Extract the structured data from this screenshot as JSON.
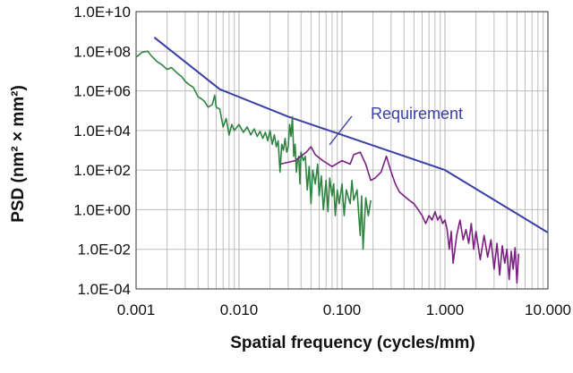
{
  "chart_data": {
    "type": "line",
    "xlabel": "Spatial frequency (cycles/mm)",
    "ylabel": "PSD (nm² × mm²)",
    "x_scale": "log",
    "y_scale": "log",
    "xlim": [
      0.001,
      10
    ],
    "ylim": [
      0.0001,
      10000000000
    ],
    "grid": true,
    "x_ticks": [
      {
        "value": 0.001,
        "label": "0.001"
      },
      {
        "value": 0.01,
        "label": "0.010"
      },
      {
        "value": 0.1,
        "label": "0.100"
      },
      {
        "value": 1,
        "label": "1.000"
      },
      {
        "value": 10,
        "label": "10.000"
      }
    ],
    "y_ticks": [
      {
        "value": 10000000000,
        "label": "1.0E+10"
      },
      {
        "value": 100000000,
        "label": "1.0E+08"
      },
      {
        "value": 1000000,
        "label": "1.0E+06"
      },
      {
        "value": 10000,
        "label": "1.0E+04"
      },
      {
        "value": 100,
        "label": "1.0E+02"
      },
      {
        "value": 1,
        "label": "1.0E+00"
      },
      {
        "value": 0.01,
        "label": "1.0E-02"
      },
      {
        "value": 0.0001,
        "label": "1.0E-04"
      }
    ],
    "annotations": [
      {
        "text": "Requirement",
        "x": 0.3,
        "y": 10000,
        "color": "#3a3fa6"
      }
    ],
    "series": [
      {
        "color": "#3a3fa6",
        "points": [
          [
            0.0015,
            500000000.0
          ],
          [
            0.0065,
            1200000.0
          ],
          [
            0.03,
            50000.0
          ],
          [
            0.1,
            6000.0
          ],
          [
            1,
            100.0
          ],
          [
            10,
            0.07
          ]
        ]
      },
      {
        "color": "#2e8540",
        "points": [
          [
            0.001,
            50000000.0
          ],
          [
            0.00115,
            90000000.0
          ],
          [
            0.0013,
            100000000.0
          ],
          [
            0.0014,
            60000000.0
          ],
          [
            0.0016,
            30000000.0
          ],
          [
            0.0018,
            20000000.0
          ],
          [
            0.002,
            12000000.0
          ],
          [
            0.0022,
            15000000.0
          ],
          [
            0.0025,
            8000000.0
          ],
          [
            0.0028,
            5000000.0
          ],
          [
            0.003,
            3000000.0
          ],
          [
            0.0033,
            2000000.0
          ],
          [
            0.0036,
            1500000.0
          ],
          [
            0.004,
            500000.0
          ],
          [
            0.0043,
            400000.0
          ],
          [
            0.0046,
            300000.0
          ],
          [
            0.005,
            150000.0
          ],
          [
            0.0055,
            200000.0
          ],
          [
            0.0058,
            600000.0
          ],
          [
            0.006,
            150000.0
          ],
          [
            0.0065,
            120000.0
          ],
          [
            0.007,
            15000.0
          ],
          [
            0.0075,
            40000.0
          ],
          [
            0.008,
            6000.0
          ],
          [
            0.0085,
            20000.0
          ],
          [
            0.009,
            10000.0
          ],
          [
            0.01,
            20000.0
          ],
          [
            0.011,
            8000.0
          ],
          [
            0.012,
            15000.0
          ],
          [
            0.013,
            6000.0
          ],
          [
            0.014,
            12000.0
          ],
          [
            0.015,
            5000.0
          ],
          [
            0.016,
            9000.0
          ],
          [
            0.017,
            4000.0
          ],
          [
            0.018,
            8000.0
          ],
          [
            0.019,
            3000.0
          ],
          [
            0.02,
            10000.0
          ],
          [
            0.021,
            2000.0
          ],
          [
            0.022,
            6000.0
          ],
          [
            0.023,
            1500.0
          ],
          [
            0.024,
            3000.0
          ],
          [
            0.025,
            80
          ],
          [
            0.026,
            2000.0
          ],
          [
            0.027,
            1000.0
          ],
          [
            0.028,
            4000.0
          ],
          [
            0.029,
            800
          ],
          [
            0.03,
            1500.0
          ],
          [
            0.031,
            20000.0
          ],
          [
            0.032,
            5000.0
          ],
          [
            0.033,
            50000.0
          ],
          [
            0.034,
            500.0
          ],
          [
            0.035,
            2000.0
          ],
          [
            0.036,
            80
          ],
          [
            0.037,
            300.0
          ],
          [
            0.038,
            500.0
          ],
          [
            0.039,
            20
          ],
          [
            0.04,
            800.0
          ],
          [
            0.042,
            300.0
          ],
          [
            0.044,
            500.0
          ],
          [
            0.046,
            10
          ],
          [
            0.048,
            150
          ],
          [
            0.05,
            2
          ],
          [
            0.052,
            100
          ],
          [
            0.055,
            20
          ],
          [
            0.058,
            200.0
          ],
          [
            0.06,
            5
          ],
          [
            0.063,
            50
          ],
          [
            0.066,
            1
          ],
          [
            0.07,
            30
          ],
          [
            0.073,
            0.8
          ],
          [
            0.076,
            40
          ],
          [
            0.08,
            5
          ],
          [
            0.083,
            20
          ],
          [
            0.086,
            0.5
          ],
          [
            0.09,
            10
          ],
          [
            0.094,
            2
          ],
          [
            0.1,
            20
          ],
          [
            0.105,
            0.5
          ],
          [
            0.11,
            10
          ],
          [
            0.12,
            2
          ],
          [
            0.125,
            30
          ],
          [
            0.13,
            3
          ],
          [
            0.14,
            10
          ],
          [
            0.15,
            0.05
          ],
          [
            0.155,
            5
          ],
          [
            0.16,
            0.01
          ],
          [
            0.17,
            4
          ],
          [
            0.18,
            0.5
          ],
          [
            0.19,
            3
          ]
        ]
      },
      {
        "color": "#7a1f82",
        "points": [
          [
            0.025,
            200
          ],
          [
            0.035,
            300
          ],
          [
            0.045,
            800
          ],
          [
            0.05,
            1500
          ],
          [
            0.055,
            600
          ],
          [
            0.065,
            300
          ],
          [
            0.08,
            150
          ],
          [
            0.1,
            300
          ],
          [
            0.12,
            200
          ],
          [
            0.13,
            600
          ],
          [
            0.15,
            800
          ],
          [
            0.17,
            200
          ],
          [
            0.19,
            30
          ],
          [
            0.21,
            40
          ],
          [
            0.24,
            80
          ],
          [
            0.27,
            500
          ],
          [
            0.3,
            80
          ],
          [
            0.33,
            20
          ],
          [
            0.36,
            8
          ],
          [
            0.4,
            5
          ],
          [
            0.45,
            3
          ],
          [
            0.5,
            2
          ],
          [
            0.55,
            1
          ],
          [
            0.6,
            0.5
          ],
          [
            0.65,
            0.2
          ],
          [
            0.7,
            0.5
          ],
          [
            0.75,
            0.3
          ],
          [
            0.8,
            0.8
          ],
          [
            0.85,
            0.3
          ],
          [
            0.9,
            0.5
          ],
          [
            0.95,
            0.2
          ],
          [
            1,
            0.3
          ],
          [
            1.05,
            0.1
          ],
          [
            1.1,
            0.01
          ],
          [
            1.15,
            0.08
          ],
          [
            1.2,
            0.002
          ],
          [
            1.3,
            0.05
          ],
          [
            1.4,
            0.3
          ],
          [
            1.5,
            0.03
          ],
          [
            1.6,
            0.1
          ],
          [
            1.7,
            0.02
          ],
          [
            1.8,
            0.2
          ],
          [
            1.9,
            0.01
          ],
          [
            2,
            0.08
          ],
          [
            2.2,
            0.003
          ],
          [
            2.4,
            0.05
          ],
          [
            2.6,
            0.004
          ],
          [
            2.8,
            0.03
          ],
          [
            3,
            0.001
          ],
          [
            3.2,
            0.02
          ],
          [
            3.4,
            0.0005
          ],
          [
            3.6,
            0.015
          ],
          [
            3.8,
            0.002
          ],
          [
            4,
            0.01
          ],
          [
            4.2,
            0.0003
          ],
          [
            4.4,
            0.008
          ],
          [
            4.6,
            0.001
          ],
          [
            4.8,
            0.012
          ],
          [
            5,
            0.0002
          ],
          [
            5.2,
            0.006
          ]
        ]
      }
    ]
  }
}
